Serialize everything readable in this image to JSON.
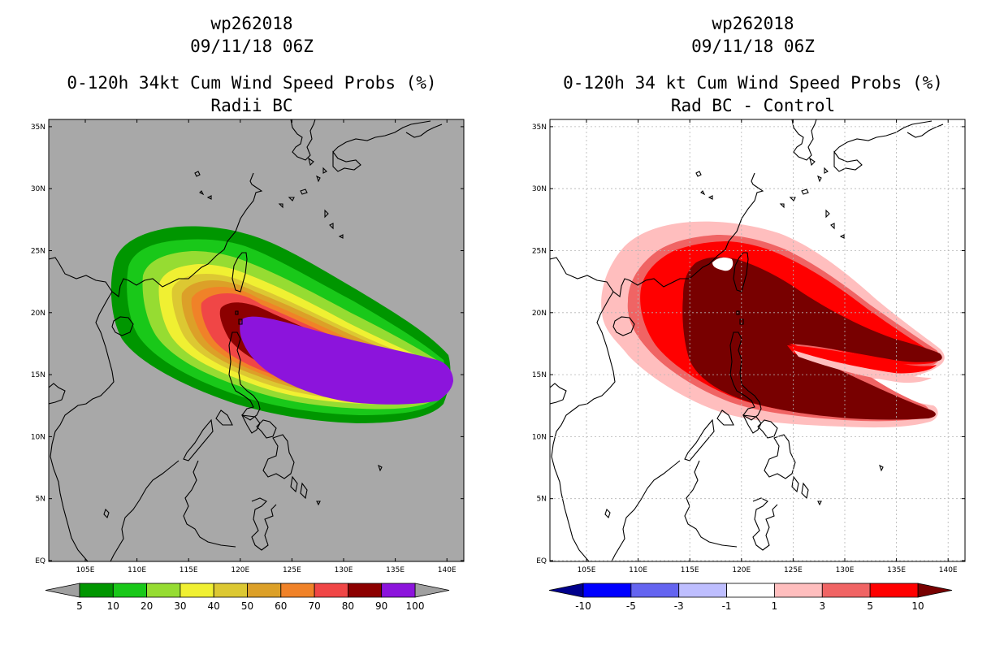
{
  "left_panel": {
    "storm_id": "wp262018",
    "datetime": "09/11/18 06Z",
    "title": "0-120h 34kt Cum Wind Speed Probs (%)",
    "subtitle": "Radii BC",
    "colorbar": {
      "labels": [
        "5",
        "10",
        "20",
        "30",
        "40",
        "50",
        "60",
        "70",
        "80",
        "90",
        "100"
      ],
      "colors": [
        "#009600",
        "#19c819",
        "#96dc32",
        "#f0f032",
        "#dcc832",
        "#dca028",
        "#f08228",
        "#f04646",
        "#8c0000",
        "#8c14dc"
      ],
      "under_color": "#a0a0a0",
      "over_color": "#a0a0a0"
    },
    "background_color": "#a8a8a8"
  },
  "right_panel": {
    "storm_id": "wp262018",
    "datetime": "09/11/18 06Z",
    "title": "0-120h 34 kt Cum Wind Speed Probs (%)",
    "subtitle": "Rad BC - Control",
    "colorbar": {
      "labels": [
        "-10",
        "-5",
        "-3",
        "-1",
        "1",
        "3",
        "5",
        "10"
      ],
      "colors": [
        "#0000ff",
        "#6464f0",
        "#bebeff",
        "#ffffff",
        "#ffbebe",
        "#f06464",
        "#ff0000"
      ],
      "under_color": "#00008c",
      "over_color": "#780000"
    },
    "background_color": "#ffffff"
  },
  "axes": {
    "lat_labels": [
      "EQ",
      "5N",
      "10N",
      "15N",
      "20N",
      "25N",
      "30N",
      "35N"
    ],
    "lon_labels": [
      "105E",
      "110E",
      "115E",
      "120E",
      "125E",
      "130E",
      "135E",
      "140E"
    ]
  }
}
